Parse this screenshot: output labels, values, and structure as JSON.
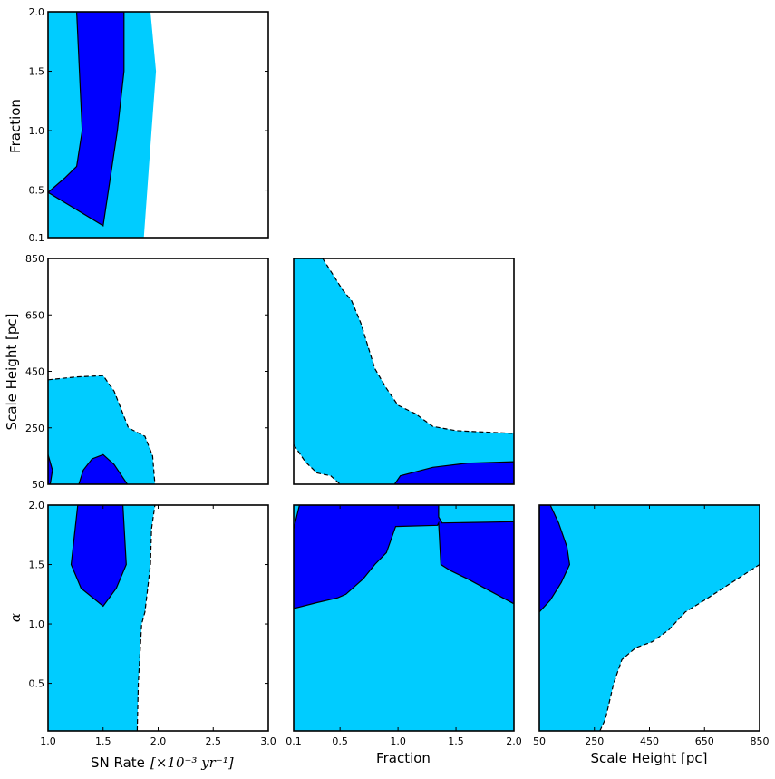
{
  "chart_data": {
    "type": "corner-contour",
    "colors": {
      "sigma1": "#0000ff",
      "sigma2": "#00ccff",
      "frame": "#000000",
      "background": "#ffffff"
    },
    "axis_labels": {
      "sn_rate": "SN Rate",
      "sn_rate_unit": "[×10⁻³ yr⁻¹]",
      "fraction": "Fraction",
      "scale_height": "Scale Height [pc]",
      "alpha": "α"
    },
    "ranges": {
      "sn_rate": [
        1.0,
        3.0
      ],
      "fraction": [
        0.1,
        2.0
      ],
      "scale_height": [
        50,
        850
      ],
      "alpha": [
        0.1,
        2.0
      ]
    },
    "ticks": {
      "sn_rate": [
        "1.0",
        "1.5",
        "2.0",
        "2.5",
        "3.0"
      ],
      "fraction": [
        "0.1",
        "0.5",
        "1.0",
        "1.5",
        "2.0"
      ],
      "scale_height": [
        "50",
        "250",
        "450",
        "650",
        "850"
      ],
      "alpha": [
        "0.5",
        "1.0",
        "1.5",
        "2.0"
      ],
      "fraction_y": [
        "0.1",
        "0.5",
        "1.0",
        "1.5",
        "2.0"
      ]
    },
    "panels": [
      {
        "id": "fraction-vs-snrate",
        "x": "sn_rate",
        "y": "fraction",
        "sigma2": [
          [
            1.0,
            0.1
          ],
          [
            1.87,
            0.1
          ],
          [
            1.94,
            1.0
          ],
          [
            1.98,
            1.5
          ],
          [
            1.93,
            2.0
          ],
          [
            1.0,
            2.0
          ]
        ],
        "sigma1": [
          [
            1.0,
            0.48
          ],
          [
            1.15,
            0.6
          ],
          [
            1.26,
            0.7
          ],
          [
            1.31,
            1.0
          ],
          [
            1.26,
            2.0
          ],
          [
            1.69,
            2.0
          ],
          [
            1.69,
            1.5
          ],
          [
            1.63,
            1.0
          ],
          [
            1.5,
            0.2
          ],
          [
            1.0,
            0.48
          ]
        ]
      },
      {
        "id": "scaleheight-vs-snrate",
        "x": "sn_rate",
        "y": "scale_height",
        "sigma2": [
          [
            1.0,
            50
          ],
          [
            1.97,
            50
          ],
          [
            1.95,
            150
          ],
          [
            1.88,
            220
          ],
          [
            1.73,
            250
          ],
          [
            1.65,
            330
          ],
          [
            1.6,
            380
          ],
          [
            1.5,
            435
          ],
          [
            1.25,
            430
          ],
          [
            1.0,
            420
          ]
        ],
        "sigma2_dashed": [
          [
            1.0,
            420
          ],
          [
            1.25,
            430
          ],
          [
            1.5,
            435
          ],
          [
            1.6,
            380
          ],
          [
            1.65,
            330
          ],
          [
            1.73,
            250
          ],
          [
            1.88,
            220
          ],
          [
            1.95,
            150
          ],
          [
            1.97,
            50
          ]
        ],
        "sigma1": [
          [
            1.28,
            50
          ],
          [
            1.32,
            100
          ],
          [
            1.4,
            140
          ],
          [
            1.5,
            155
          ],
          [
            1.6,
            120
          ],
          [
            1.72,
            50
          ]
        ],
        "sigma1_edge": [
          [
            1.0,
            155
          ],
          [
            1.04,
            100
          ],
          [
            1.02,
            50
          ],
          [
            1.0,
            50
          ]
        ]
      },
      {
        "id": "scaleheight-vs-fraction",
        "x": "fraction",
        "y": "scale_height",
        "sigma2": [
          [
            0.1,
            50
          ],
          [
            0.5,
            50
          ],
          [
            0.42,
            80
          ],
          [
            0.3,
            90
          ],
          [
            0.2,
            130
          ],
          [
            0.1,
            190
          ],
          [
            0.1,
            850
          ],
          [
            0.35,
            850
          ],
          [
            0.52,
            740
          ],
          [
            0.6,
            700
          ],
          [
            0.68,
            620
          ],
          [
            0.8,
            460
          ],
          [
            0.9,
            390
          ],
          [
            1.0,
            330
          ],
          [
            1.15,
            300
          ],
          [
            1.3,
            255
          ],
          [
            1.5,
            240
          ],
          [
            2.0,
            230
          ],
          [
            2.0,
            50
          ]
        ],
        "sigma2_dashed": [
          [
            0.1,
            190
          ],
          [
            0.2,
            130
          ],
          [
            0.3,
            90
          ],
          [
            0.42,
            80
          ],
          [
            0.5,
            50
          ]
        ],
        "sigma2_dashed_top": [
          [
            0.35,
            850
          ],
          [
            0.52,
            740
          ],
          [
            0.6,
            700
          ],
          [
            0.68,
            620
          ],
          [
            0.8,
            460
          ],
          [
            0.9,
            390
          ],
          [
            1.0,
            330
          ],
          [
            1.15,
            300
          ],
          [
            1.3,
            255
          ],
          [
            1.5,
            240
          ],
          [
            2.0,
            230
          ]
        ],
        "sigma1": [
          [
            0.97,
            50
          ],
          [
            1.02,
            80
          ],
          [
            1.3,
            110
          ],
          [
            1.6,
            125
          ],
          [
            2.0,
            130
          ],
          [
            2.0,
            50
          ]
        ]
      },
      {
        "id": "alpha-vs-snrate",
        "x": "sn_rate",
        "y": "alpha",
        "sigma2": [
          [
            1.0,
            0.1
          ],
          [
            1.81,
            0.1
          ],
          [
            1.82,
            0.5
          ],
          [
            1.85,
            1.0
          ],
          [
            1.88,
            1.1
          ],
          [
            1.93,
            1.5
          ],
          [
            1.94,
            1.8
          ],
          [
            1.97,
            2.0
          ],
          [
            1.0,
            2.0
          ]
        ],
        "sigma2_dashed": [
          [
            1.81,
            0.1
          ],
          [
            1.82,
            0.5
          ],
          [
            1.85,
            1.0
          ],
          [
            1.88,
            1.1
          ],
          [
            1.93,
            1.5
          ],
          [
            1.94,
            1.8
          ],
          [
            1.97,
            2.0
          ]
        ],
        "sigma1": [
          [
            1.27,
            2.0
          ],
          [
            1.21,
            1.5
          ],
          [
            1.3,
            1.3
          ],
          [
            1.5,
            1.15
          ],
          [
            1.62,
            1.3
          ],
          [
            1.71,
            1.5
          ],
          [
            1.68,
            2.0
          ]
        ]
      },
      {
        "id": "alpha-vs-fraction",
        "x": "fraction",
        "y": "alpha",
        "sigma2": [
          [
            0.1,
            0.1
          ],
          [
            2.0,
            0.1
          ],
          [
            2.0,
            2.0
          ],
          [
            0.1,
            2.0
          ]
        ],
        "sigma1": [
          [
            0.18,
            2.0
          ],
          [
            1.35,
            2.0
          ],
          [
            1.35,
            1.9
          ],
          [
            1.38,
            1.85
          ],
          [
            2.0,
            1.86
          ],
          [
            2.0,
            1.17
          ],
          [
            1.75,
            1.3
          ],
          [
            1.6,
            1.38
          ],
          [
            1.45,
            1.45
          ],
          [
            1.37,
            1.5
          ],
          [
            1.35,
            1.85
          ],
          [
            1.34,
            1.83
          ],
          [
            0.98,
            1.82
          ],
          [
            0.9,
            1.6
          ],
          [
            0.8,
            1.5
          ],
          [
            0.7,
            1.38
          ],
          [
            0.55,
            1.25
          ],
          [
            0.48,
            1.22
          ],
          [
            0.3,
            1.18
          ],
          [
            0.1,
            1.13
          ],
          [
            0.1,
            1.8
          ],
          [
            0.15,
            2.0
          ]
        ]
      },
      {
        "id": "alpha-vs-scaleheight",
        "x": "scale_height",
        "y": "alpha",
        "sigma2": [
          [
            50,
            0.1
          ],
          [
            270,
            0.1
          ],
          [
            290,
            0.2
          ],
          [
            320,
            0.5
          ],
          [
            350,
            0.7
          ],
          [
            400,
            0.8
          ],
          [
            460,
            0.85
          ],
          [
            520,
            0.95
          ],
          [
            580,
            1.1
          ],
          [
            650,
            1.2
          ],
          [
            750,
            1.35
          ],
          [
            850,
            1.5
          ],
          [
            850,
            2.0
          ],
          [
            50,
            2.0
          ]
        ],
        "sigma2_dashed": [
          [
            270,
            0.1
          ],
          [
            290,
            0.2
          ],
          [
            320,
            0.5
          ],
          [
            350,
            0.7
          ],
          [
            400,
            0.8
          ],
          [
            460,
            0.85
          ],
          [
            520,
            0.95
          ],
          [
            580,
            1.1
          ],
          [
            650,
            1.2
          ],
          [
            750,
            1.35
          ],
          [
            850,
            1.5
          ]
        ],
        "sigma1": [
          [
            50,
            2.0
          ],
          [
            90,
            2.0
          ],
          [
            120,
            1.85
          ],
          [
            150,
            1.65
          ],
          [
            160,
            1.5
          ],
          [
            130,
            1.35
          ],
          [
            90,
            1.2
          ],
          [
            50,
            1.1
          ]
        ]
      }
    ]
  }
}
